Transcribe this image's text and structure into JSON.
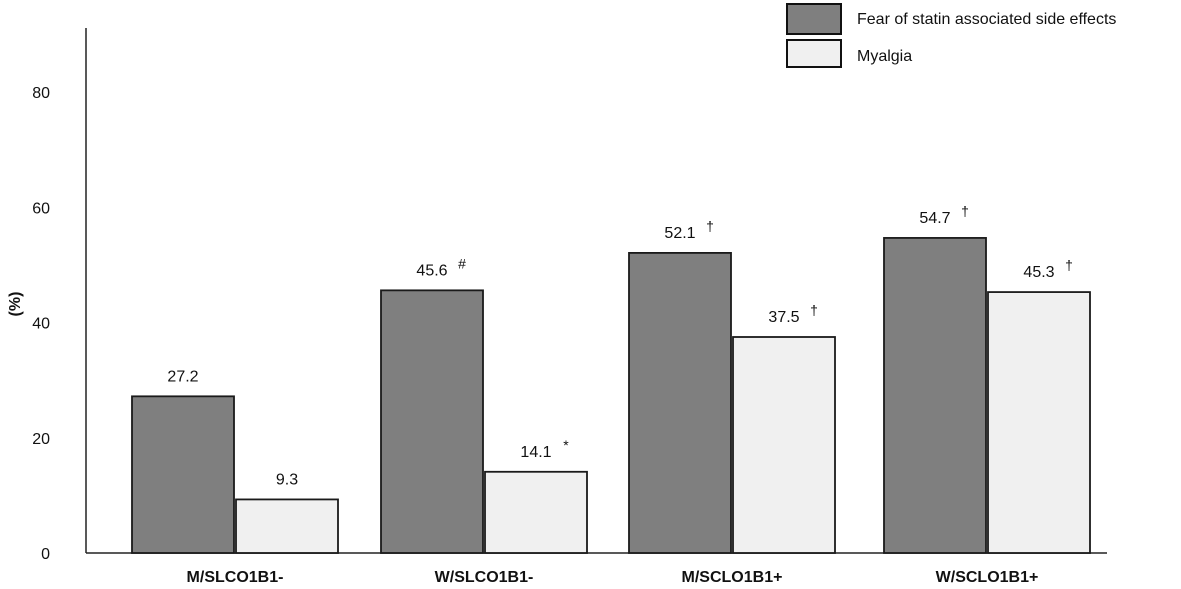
{
  "chart_data": {
    "type": "bar",
    "title": "",
    "xlabel": "",
    "ylabel": "(%)",
    "ylim": [
      0,
      92
    ],
    "yticks": [
      0,
      20,
      40,
      60,
      80
    ],
    "categories": [
      "M/SLCO1B1-",
      "W/SLCO1B1-",
      "M/SCLO1B1+",
      "W/SCLO1B1+"
    ],
    "series": [
      {
        "name": "Fear of statin associated side effects",
        "color": "#7f7f7f",
        "values": [
          27.2,
          45.6,
          52.1,
          54.7
        ],
        "labels": [
          "27.2",
          "45.6",
          "52.1",
          "54.7"
        ],
        "marks": [
          "",
          "#",
          "†",
          "†"
        ]
      },
      {
        "name": "Myalgia",
        "color": "#f0f0f0",
        "values": [
          9.3,
          14.1,
          37.5,
          45.3
        ],
        "labels": [
          "9.3",
          "14.1",
          "37.5",
          "45.3"
        ],
        "marks": [
          "",
          "*",
          "†",
          "†"
        ]
      }
    ],
    "legend_position": "top-right"
  }
}
